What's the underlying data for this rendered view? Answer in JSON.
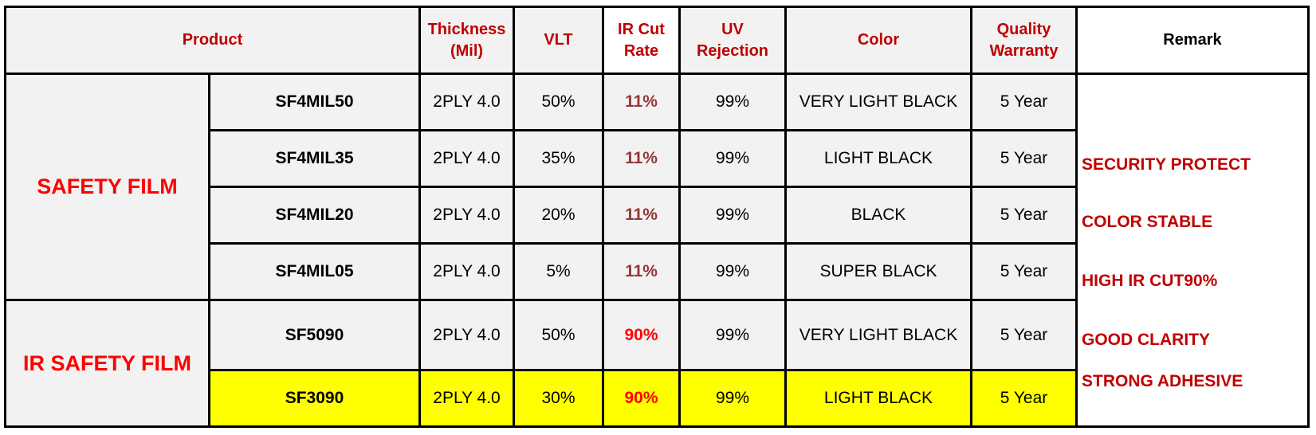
{
  "header": [
    "Product",
    "Thickness (Mil)",
    "VLT",
    "IR Cut Rate",
    "UV Rejection",
    "Color",
    "Quality Warranty",
    "Remark"
  ],
  "groups": [
    {
      "label": "SAFETY FILM",
      "rows": [
        [
          "SF4MIL50",
          "2PLY 4.0",
          "50%",
          "11%",
          "99%",
          "VERY LIGHT BLACK",
          "5 Year"
        ],
        [
          "SF4MIL35",
          "2PLY 4.0",
          "35%",
          "11%",
          "99%",
          "LIGHT BLACK",
          "5 Year"
        ],
        [
          "SF4MIL20",
          "2PLY 4.0",
          "20%",
          "11%",
          "99%",
          "BLACK",
          "5 Year"
        ],
        [
          "SF4MIL05",
          "2PLY 4.0",
          "5%",
          "11%",
          "99%",
          "SUPER BLACK",
          "5 Year"
        ]
      ]
    },
    {
      "label": "IR SAFETY FILM",
      "rows": [
        [
          "SF5090",
          "2PLY 4.0",
          "50%",
          "90%",
          "99%",
          "VERY LIGHT BLACK",
          "5 Year"
        ],
        [
          "SF3090",
          "2PLY 4.0",
          "30%",
          "90%",
          "99%",
          "LIGHT BLACK",
          "5 Year"
        ]
      ]
    }
  ],
  "remarks": [
    "SECURITY PROTECT",
    "COLOR STABLE",
    "HIGH IR CUT90%",
    "GOOD CLARITY",
    "STRONG ADHESIVE"
  ]
}
